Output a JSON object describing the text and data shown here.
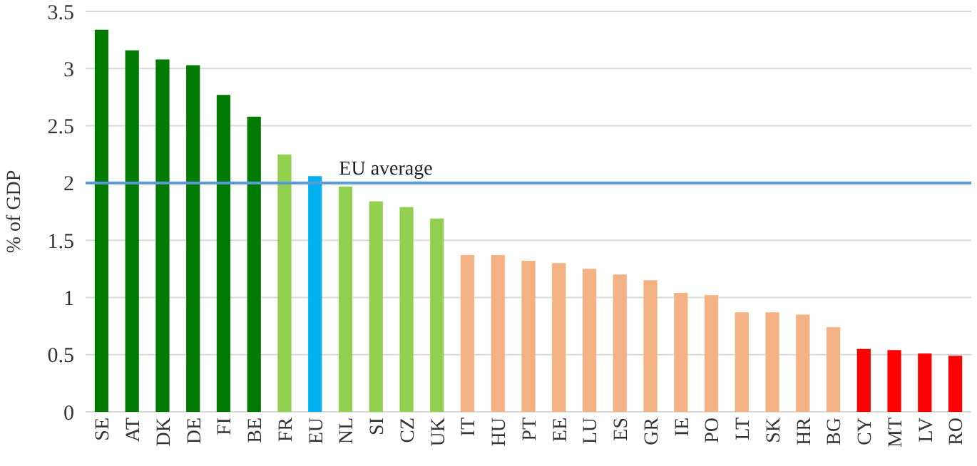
{
  "chart_data": {
    "type": "bar",
    "ylabel": "% of GDP",
    "categories": [
      "SE",
      "AT",
      "DK",
      "DE",
      "FI",
      "BE",
      "FR",
      "EU",
      "NL",
      "SI",
      "CZ",
      "UK",
      "IT",
      "HU",
      "PT",
      "EE",
      "LU",
      "ES",
      "GR",
      "IE",
      "PO",
      "LT",
      "SK",
      "HR",
      "BG",
      "CY",
      "MT",
      "LV",
      "RO"
    ],
    "values": [
      3.34,
      3.16,
      3.08,
      3.03,
      2.77,
      2.58,
      2.25,
      2.06,
      1.97,
      1.84,
      1.79,
      1.69,
      1.37,
      1.37,
      1.32,
      1.3,
      1.25,
      1.2,
      1.15,
      1.04,
      1.02,
      0.87,
      0.87,
      0.85,
      0.74,
      0.55,
      0.54,
      0.51,
      0.49
    ],
    "colors": [
      "#007a00",
      "#007a00",
      "#007a00",
      "#007a00",
      "#007a00",
      "#007a00",
      "#92d050",
      "#00b0f0",
      "#92d050",
      "#92d050",
      "#92d050",
      "#92d050",
      "#f4b183",
      "#f4b183",
      "#f4b183",
      "#f4b183",
      "#f4b183",
      "#f4b183",
      "#f4b183",
      "#f4b183",
      "#f4b183",
      "#f4b183",
      "#f4b183",
      "#f4b183",
      "#f4b183",
      "#ff0000",
      "#ff0000",
      "#ff0000",
      "#ff0000"
    ],
    "ylim": [
      0,
      3.5
    ],
    "yticks": [
      0,
      0.5,
      1,
      1.5,
      2,
      2.5,
      3,
      3.5
    ],
    "grid": "y",
    "ref_lines": [
      {
        "axis": "y",
        "value": 2,
        "label": "EU average",
        "color": "#5b9bd5"
      }
    ]
  }
}
